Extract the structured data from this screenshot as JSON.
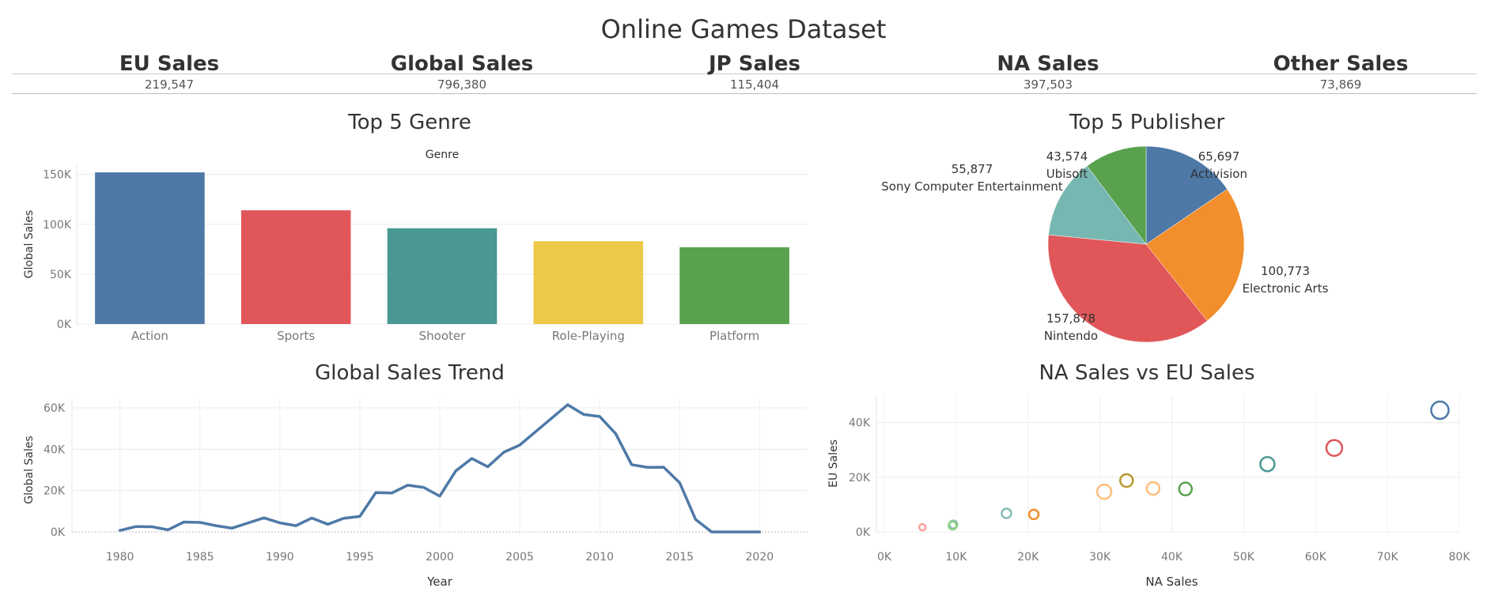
{
  "dashboard": {
    "title": "Online Games Dataset"
  },
  "kpis": [
    {
      "label": "EU Sales",
      "value": "219,547"
    },
    {
      "label": "Global Sales",
      "value": "796,380"
    },
    {
      "label": "JP Sales",
      "value": "115,404"
    },
    {
      "label": "NA Sales",
      "value": "397,503"
    },
    {
      "label": "Other Sales",
      "value": "73,869"
    }
  ],
  "chart_data": [
    {
      "type": "bar",
      "title": "Top 5 Genre",
      "header": "Genre",
      "ylabel": "Global Sales",
      "xlabel": "",
      "categories": [
        "Action",
        "Sports",
        "Shooter",
        "Role-Playing",
        "Platform"
      ],
      "values": [
        152000,
        114000,
        96000,
        83000,
        77000
      ],
      "colors": [
        "#4e79a7",
        "#e15759",
        "#499894",
        "#edc948",
        "#59a14f"
      ],
      "ylim": [
        0,
        160000
      ],
      "yticks": [
        0,
        50000,
        100000,
        150000
      ],
      "ytick_labels": [
        "0K",
        "50K",
        "100K",
        "150K"
      ],
      "grid": true
    },
    {
      "type": "pie",
      "title": "Top 5 Publisher",
      "slices": [
        {
          "label": "Activision",
          "value": 65697,
          "value_label": "65,697",
          "color": "#4e79a7"
        },
        {
          "label": "Electronic Arts",
          "value": 100773,
          "value_label": "100,773",
          "color": "#f28e2b"
        },
        {
          "label": "Nintendo",
          "value": 157878,
          "value_label": "157,878",
          "color": "#e15759"
        },
        {
          "label": "Sony Computer Entertainment",
          "value": 55877,
          "value_label": "55,877",
          "color": "#76b7b2"
        },
        {
          "label": "Ubisoft",
          "value": 43574,
          "value_label": "43,574",
          "color": "#59a14f"
        }
      ]
    },
    {
      "type": "line",
      "title": "Global Sales Trend",
      "xlabel": "Year",
      "ylabel": "Global Sales",
      "color": "#4e79a7",
      "x": [
        1980,
        1981,
        1982,
        1983,
        1984,
        1985,
        1986,
        1987,
        1988,
        1989,
        1990,
        1991,
        1992,
        1993,
        1994,
        1995,
        1996,
        1997,
        1998,
        1999,
        2000,
        2001,
        2002,
        2003,
        2004,
        2005,
        2006,
        2007,
        2008,
        2009,
        2010,
        2011,
        2012,
        2013,
        2014,
        2015,
        2016,
        2017,
        2018,
        2019,
        2020
      ],
      "y": [
        700,
        2600,
        2500,
        1000,
        4800,
        4600,
        3000,
        1800,
        4300,
        6800,
        4400,
        3000,
        6700,
        3700,
        6600,
        7500,
        19000,
        18800,
        22600,
        21500,
        17300,
        29500,
        35500,
        31500,
        38500,
        42000,
        48500,
        55000,
        61500,
        56800,
        55800,
        47500,
        32500,
        31200,
        31300,
        23800,
        6000,
        0,
        0,
        0,
        0
      ],
      "xlim": [
        1977,
        2023
      ],
      "ylim": [
        0,
        60000
      ],
      "xticks": [
        1980,
        1985,
        1990,
        1995,
        2000,
        2005,
        2010,
        2015,
        2020
      ],
      "yticks": [
        0,
        20000,
        40000,
        60000
      ],
      "ytick_labels": [
        "0K",
        "20K",
        "40K",
        "60K"
      ],
      "grid": true
    },
    {
      "type": "scatter",
      "title": "NA Sales vs EU Sales",
      "xlabel": "NA Sales",
      "ylabel": "EU Sales",
      "xlim": [
        0,
        80000
      ],
      "ylim": [
        0,
        50000
      ],
      "xticks": [
        0,
        10000,
        20000,
        30000,
        40000,
        50000,
        60000,
        70000,
        80000
      ],
      "xtick_labels": [
        "0K",
        "10K",
        "20K",
        "30K",
        "40K",
        "50K",
        "60K",
        "70K",
        "80K"
      ],
      "yticks": [
        0,
        20000,
        40000
      ],
      "ytick_labels": [
        "0K",
        "20K",
        "40K"
      ],
      "points": [
        {
          "x": 77300,
          "y": 44500,
          "size": 11,
          "color": "#4e79a7"
        },
        {
          "x": 62600,
          "y": 30700,
          "size": 10,
          "color": "#e15759"
        },
        {
          "x": 53300,
          "y": 24800,
          "size": 9,
          "color": "#499894"
        },
        {
          "x": 41900,
          "y": 15700,
          "size": 8,
          "color": "#59a14f"
        },
        {
          "x": 37400,
          "y": 15900,
          "size": 8,
          "color": "#ffbe7d"
        },
        {
          "x": 33700,
          "y": 18800,
          "size": 8,
          "color": "#b6992d"
        },
        {
          "x": 30600,
          "y": 14700,
          "size": 9,
          "color": "#ffbe7d"
        },
        {
          "x": 20800,
          "y": 6400,
          "size": 6,
          "color": "#f28e2b"
        },
        {
          "x": 17000,
          "y": 6800,
          "size": 6,
          "color": "#86bcb6"
        },
        {
          "x": 9600,
          "y": 2700,
          "size": 5,
          "color": "#86bcb6"
        },
        {
          "x": 9500,
          "y": 2300,
          "size": 5,
          "color": "#8cd17d"
        },
        {
          "x": 5300,
          "y": 1700,
          "size": 4,
          "color": "#ff9d9a"
        }
      ],
      "grid": true
    }
  ]
}
